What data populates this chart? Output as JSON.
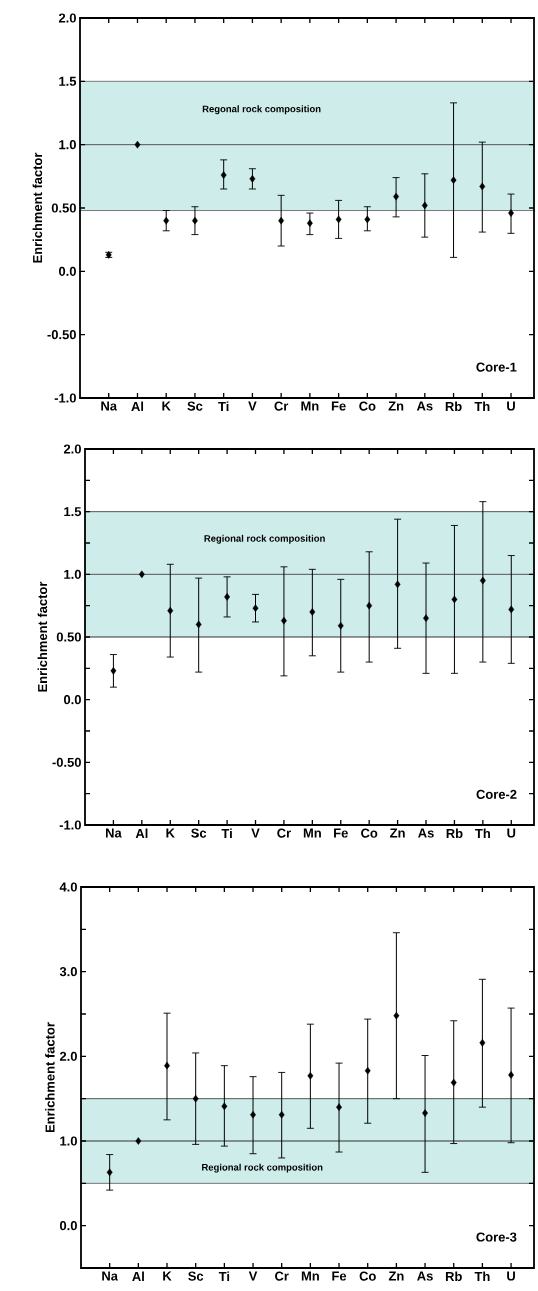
{
  "chart_data": [
    {
      "type": "scatter",
      "categories": [
        "Na",
        "Al",
        "K",
        "Sc",
        "Ti",
        "V",
        "Cr",
        "Mn",
        "Fe",
        "Co",
        "Zn",
        "As",
        "Rb",
        "Th",
        "U"
      ],
      "values": [
        0.13,
        1.0,
        0.4,
        0.4,
        0.76,
        0.73,
        0.4,
        0.38,
        0.41,
        0.41,
        0.59,
        0.52,
        0.72,
        0.67,
        0.46
      ],
      "errors": [
        [
          0.11,
          0.15
        ],
        null,
        [
          0.32,
          0.48
        ],
        [
          0.29,
          0.51
        ],
        [
          0.65,
          0.88
        ],
        [
          0.65,
          0.81
        ],
        [
          0.2,
          0.6
        ],
        [
          0.29,
          0.46
        ],
        [
          0.26,
          0.56
        ],
        [
          0.32,
          0.51
        ],
        [
          0.43,
          0.74
        ],
        [
          0.27,
          0.77
        ],
        [
          0.11,
          1.33
        ],
        [
          0.31,
          1.02
        ],
        [
          0.3,
          0.61
        ]
      ],
      "color": "#000000",
      "marker": "diamond",
      "ylabel": "Enrichment factor",
      "ylim": [
        -1.0,
        2.0
      ],
      "yticks": [
        {
          "value": -1.0,
          "label": "-1.0"
        },
        {
          "value": -0.5,
          "label": "-0.50"
        },
        {
          "value": 0.0,
          "label": "0.0"
        },
        {
          "value": 0.5,
          "label": "0.50"
        },
        {
          "value": 1.0,
          "label": "1.0"
        },
        {
          "value": 1.5,
          "label": "1.5"
        },
        {
          "value": 2.0,
          "label": "2.0"
        }
      ],
      "bands": [
        {
          "axis": "y",
          "from": 0.48,
          "to": 1.5,
          "label": "Regonal rock composition",
          "color": "#cdecea"
        }
      ],
      "ref_lines": [
        {
          "axis": "y",
          "value": 0.48,
          "color": "#777777"
        },
        {
          "axis": "y",
          "value": 1.0,
          "color": "#555555"
        },
        {
          "axis": "y",
          "value": 1.5,
          "color": "#777777"
        }
      ],
      "annotations": [
        "Core-1"
      ]
    },
    {
      "type": "scatter",
      "categories": [
        "Na",
        "Al",
        "K",
        "Sc",
        "Ti",
        "V",
        "Cr",
        "Mn",
        "Fe",
        "Co",
        "Zn",
        "As",
        "Rb",
        "Th",
        "U"
      ],
      "values": [
        0.23,
        1.0,
        0.71,
        0.6,
        0.82,
        0.73,
        0.63,
        0.7,
        0.59,
        0.75,
        0.92,
        0.65,
        0.8,
        0.95,
        0.72
      ],
      "errors": [
        [
          0.1,
          0.36
        ],
        null,
        [
          0.34,
          1.08
        ],
        [
          0.22,
          0.97
        ],
        [
          0.66,
          0.98
        ],
        [
          0.62,
          0.84
        ],
        [
          0.19,
          1.06
        ],
        [
          0.35,
          1.04
        ],
        [
          0.22,
          0.96
        ],
        [
          0.3,
          1.18
        ],
        [
          0.41,
          1.44
        ],
        [
          0.21,
          1.09
        ],
        [
          0.21,
          1.39
        ],
        [
          0.3,
          1.58
        ],
        [
          0.29,
          1.15
        ]
      ],
      "color": "#000000",
      "marker": "diamond",
      "ylabel": "Enrichment factor",
      "ylim": [
        -1.0,
        2.0
      ],
      "yticks": [
        {
          "value": -1.0,
          "label": "-1.0"
        },
        {
          "value": -0.75,
          "label": null
        },
        {
          "value": -0.5,
          "label": "-0.50"
        },
        {
          "value": -0.25,
          "label": null
        },
        {
          "value": 0.0,
          "label": "0.0"
        },
        {
          "value": 0.25,
          "label": null
        },
        {
          "value": 0.5,
          "label": "0.50"
        },
        {
          "value": 0.75,
          "label": null
        },
        {
          "value": 1.0,
          "label": "1.0"
        },
        {
          "value": 1.25,
          "label": null
        },
        {
          "value": 1.5,
          "label": "1.5"
        },
        {
          "value": 1.75,
          "label": null
        },
        {
          "value": 2.0,
          "label": "2.0"
        }
      ],
      "bands": [
        {
          "axis": "y",
          "from": 0.5,
          "to": 1.5,
          "label": "Regional rock composition",
          "color": "#cdecea"
        }
      ],
      "ref_lines": [
        {
          "axis": "y",
          "value": 0.5,
          "color": "#333333"
        },
        {
          "axis": "y",
          "value": 1.0,
          "color": "#555555"
        },
        {
          "axis": "y",
          "value": 1.5,
          "color": "#555555"
        }
      ],
      "annotations": [
        "Core-2"
      ]
    },
    {
      "type": "scatter",
      "categories": [
        "Na",
        "Al",
        "K",
        "Sc",
        "Ti",
        "V",
        "Cr",
        "Mn",
        "Fe",
        "Co",
        "Zn",
        "As",
        "Rb",
        "Th",
        "U"
      ],
      "values": [
        0.63,
        1.0,
        1.89,
        1.5,
        1.41,
        1.31,
        1.31,
        1.77,
        1.4,
        1.83,
        2.48,
        1.33,
        1.69,
        2.16,
        1.78
      ],
      "errors": [
        [
          0.42,
          0.84
        ],
        null,
        [
          1.25,
          2.51
        ],
        [
          0.96,
          2.04
        ],
        [
          0.94,
          1.89
        ],
        [
          0.85,
          1.76
        ],
        [
          0.8,
          1.81
        ],
        [
          1.15,
          2.38
        ],
        [
          0.87,
          1.92
        ],
        [
          1.21,
          2.44
        ],
        [
          1.5,
          3.46
        ],
        [
          0.63,
          2.01
        ],
        [
          0.97,
          2.42
        ],
        [
          1.4,
          2.91
        ],
        [
          0.98,
          2.57
        ]
      ],
      "color": "#000000",
      "marker": "diamond",
      "ylabel": "Enrichment factor",
      "ylim": [
        -0.5,
        4.0
      ],
      "yticks": [
        {
          "value": 0.0,
          "label": "0.0"
        },
        {
          "value": 0.5,
          "label": null
        },
        {
          "value": 1.0,
          "label": "1.0"
        },
        {
          "value": 1.5,
          "label": null
        },
        {
          "value": 2.0,
          "label": "2.0"
        },
        {
          "value": 2.5,
          "label": null
        },
        {
          "value": 3.0,
          "label": "3.0"
        },
        {
          "value": 3.5,
          "label": null
        },
        {
          "value": 4.0,
          "label": "4.0"
        }
      ],
      "bands": [
        {
          "axis": "y",
          "from": 0.5,
          "to": 1.5,
          "label": "Regional rock composition",
          "color": "#cdecea"
        }
      ],
      "ref_lines": [
        {
          "axis": "y",
          "value": 0.5,
          "color": "#777777"
        },
        {
          "axis": "y",
          "value": 1.0,
          "color": "#333333"
        },
        {
          "axis": "y",
          "value": 1.5,
          "color": "#555555"
        }
      ],
      "annotations": [
        "Core-3"
      ]
    }
  ]
}
